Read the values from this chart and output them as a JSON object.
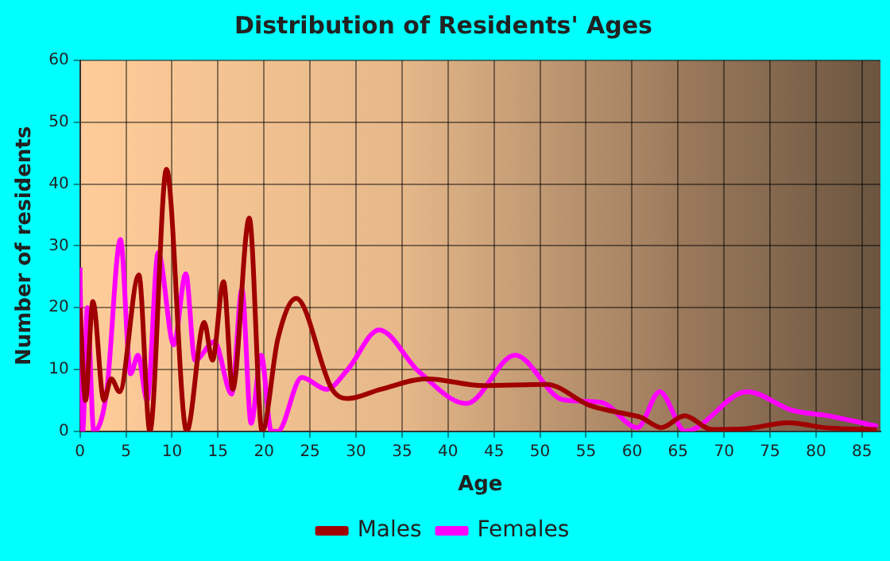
{
  "chart_data": {
    "type": "line",
    "title": "Distribution of Residents' Ages",
    "xlabel": "Age",
    "ylabel": "Number of residents",
    "xlim": [
      0,
      87
    ],
    "xticks": [
      0,
      5,
      10,
      15,
      20,
      25,
      30,
      35,
      40,
      45,
      50,
      55,
      60,
      65,
      70,
      75,
      80,
      85
    ],
    "ylim": [
      0,
      60
    ],
    "yticks": [
      0,
      10,
      20,
      30,
      40,
      50,
      60
    ],
    "grid": true,
    "legend": "bottom",
    "marker": "none",
    "line_style": "solid",
    "series": [
      {
        "name": "Males",
        "color": "#a00000",
        "x": [
          0,
          0.6,
          1.4,
          2.6,
          3.4,
          4.3,
          6.4,
          7.6,
          9.4,
          11.6,
          13.5,
          14.4,
          15.6,
          16.6,
          18.4,
          19.8,
          21.5,
          23.5,
          27.4,
          29.1,
          32.7,
          37.7,
          43.8,
          50.7,
          55.4,
          59.4,
          60.9,
          63.2,
          65.7,
          68.7,
          72.2,
          77,
          80.9,
          86.6
        ],
        "values": [
          20,
          5,
          21,
          5,
          8.5,
          6.4,
          25.3,
          0,
          42.4,
          0,
          17.6,
          11.5,
          24.2,
          6.8,
          34.5,
          0,
          14.9,
          21.5,
          6.8,
          5.3,
          6.8,
          8.5,
          7.4,
          7.6,
          4.2,
          2.8,
          2.3,
          0.6,
          2.5,
          0.3,
          0.4,
          1.4,
          0.6,
          0.3
        ]
      },
      {
        "name": "Females",
        "color": "#ff00ff",
        "x": [
          0,
          0.3,
          0.8,
          1.5,
          2.9,
          4.4,
          5.5,
          6.3,
          7.3,
          8.5,
          10.2,
          11.5,
          12.5,
          14.6,
          16.5,
          17.6,
          18.6,
          19.7,
          20.8,
          21.5,
          24.1,
          26.8,
          29.1,
          32.5,
          36.8,
          42,
          47.3,
          52.5,
          56.6,
          60.6,
          63,
          65.8,
          72.5,
          77.4,
          81.4,
          86.7
        ],
        "values": [
          26.5,
          0,
          20,
          0,
          6.4,
          31,
          9.3,
          12.3,
          5,
          28.9,
          14,
          25.5,
          11.5,
          14.5,
          6,
          23,
          1.3,
          12.3,
          0,
          0,
          8.7,
          6.8,
          10,
          16.4,
          9.7,
          4.5,
          12.3,
          5.1,
          4.7,
          0.6,
          6.4,
          0,
          6.4,
          3.4,
          2.5,
          0.8
        ]
      }
    ]
  }
}
